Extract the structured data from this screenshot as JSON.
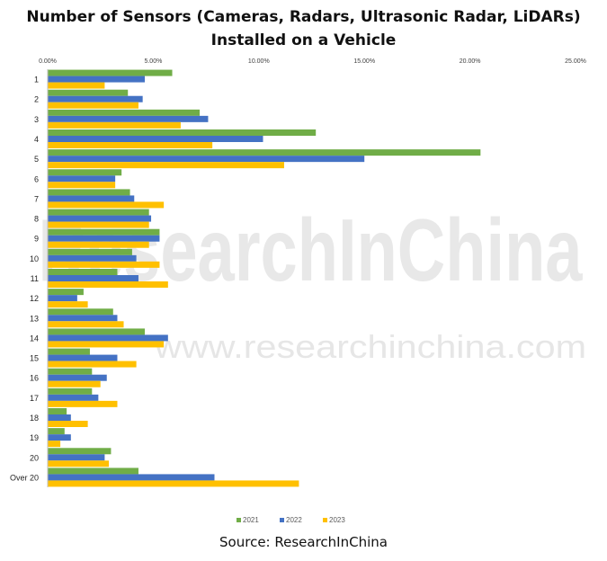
{
  "title_line1": "Number of Sensors (Cameras, Radars, Ultrasonic Radar, LiDARs)",
  "title_line2": "Installed on a Vehicle",
  "source": "Source: ResearchInChina",
  "watermark": {
    "big": "ResearchInChina",
    "url": "www.researchinchina.com"
  },
  "colors": {
    "2021": "#70ad47",
    "2022": "#4472c4",
    "2023": "#ffc000"
  },
  "chart_data": {
    "type": "bar",
    "orientation": "horizontal",
    "categories": [
      "1",
      "2",
      "3",
      "4",
      "5",
      "6",
      "7",
      "8",
      "9",
      "10",
      "11",
      "12",
      "13",
      "14",
      "15",
      "16",
      "17",
      "18",
      "19",
      "20",
      "Over 20"
    ],
    "series": [
      {
        "name": "2021",
        "values": [
          5.9,
          3.8,
          7.2,
          12.7,
          20.5,
          3.5,
          3.9,
          4.8,
          5.3,
          4.0,
          3.3,
          1.7,
          3.1,
          4.6,
          2.0,
          2.1,
          2.1,
          0.9,
          0.8,
          3.0,
          4.3
        ]
      },
      {
        "name": "2022",
        "values": [
          4.6,
          4.5,
          7.6,
          10.2,
          15.0,
          3.2,
          4.1,
          4.9,
          5.3,
          4.2,
          4.3,
          1.4,
          3.3,
          5.7,
          3.3,
          2.8,
          2.4,
          1.1,
          1.1,
          2.7,
          7.9
        ]
      },
      {
        "name": "2023",
        "values": [
          2.7,
          4.3,
          6.3,
          7.8,
          11.2,
          3.2,
          5.5,
          4.8,
          4.8,
          5.3,
          5.7,
          1.9,
          3.6,
          5.5,
          4.2,
          2.5,
          3.3,
          1.9,
          0.6,
          2.9,
          11.9
        ]
      }
    ],
    "xlim": [
      0,
      25
    ],
    "x_ticks": [
      "0.00%",
      "5.00%",
      "10.00%",
      "15.00%",
      "20.00%",
      "25.00%"
    ],
    "x_tick_values": [
      0,
      5,
      10,
      15,
      20,
      25
    ],
    "grid": false,
    "legend": [
      "2021",
      "2022",
      "2023"
    ],
    "legend_position": "bottom"
  }
}
